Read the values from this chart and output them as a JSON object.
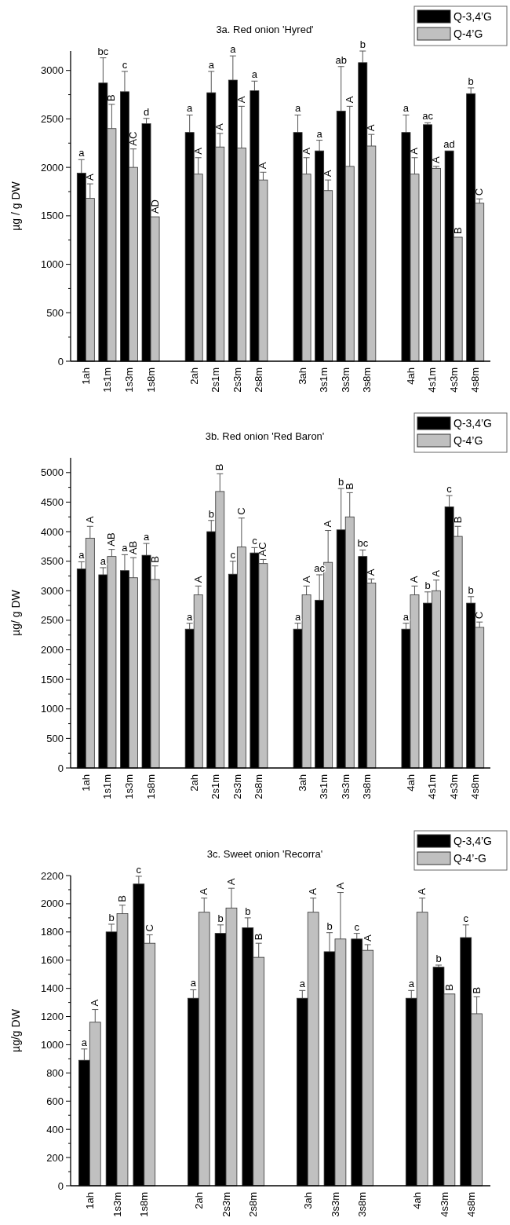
{
  "chart_data": [
    {
      "type": "bar",
      "title": "3a. Red onion 'Hyred'",
      "ylabel": "µg / g DW",
      "legend": "top right",
      "ylim": [
        0,
        3200
      ],
      "yticks": [
        0,
        {
          "value": 250,
          "label": null
        },
        500,
        {
          "value": 750,
          "label": null
        },
        1000,
        {
          "value": 1250,
          "label": null
        },
        1500,
        {
          "value": 1750,
          "label": null
        },
        2000,
        {
          "value": 2250,
          "label": null
        },
        2500,
        {
          "value": 2750,
          "label": null
        },
        3000
      ],
      "categories": [
        "1ah",
        "1s1m",
        "1s3m",
        "1s8m",
        null,
        "2ah",
        "2s1m",
        "2s3m",
        "2s8m",
        null,
        "3ah",
        "3s1m",
        "3s3m",
        "3s8m",
        null,
        "4ah",
        "4s1m",
        "4s3m",
        "4s8m"
      ],
      "series": [
        {
          "name": "Q-3,4’G",
          "color": "#000000",
          "values": [
            1940,
            2870,
            2780,
            2450,
            null,
            2360,
            2770,
            2900,
            2790,
            null,
            2360,
            2170,
            2580,
            3080,
            null,
            2360,
            2440,
            2170,
            2760
          ],
          "errors": [
            140,
            260,
            210,
            55,
            null,
            180,
            220,
            250,
            100,
            null,
            180,
            110,
            460,
            120,
            null,
            180,
            20,
            null,
            60
          ]
        },
        {
          "name": "Q-4’G",
          "color": "#c0c0c0",
          "values": [
            1680,
            2400,
            2000,
            1490,
            null,
            1930,
            2210,
            2200,
            1870,
            null,
            1930,
            1760,
            2010,
            2220,
            null,
            1930,
            1990,
            1280,
            1630
          ],
          "errors": [
            150,
            250,
            190,
            null,
            null,
            170,
            140,
            430,
            80,
            null,
            170,
            110,
            620,
            120,
            null,
            170,
            20,
            null,
            45
          ]
        }
      ],
      "annotations": [
        {
          "text": "a",
          "x": "1ah",
          "y": 2080
        },
        {
          "text": "bc",
          "x": "1s1m",
          "y": 3130
        },
        {
          "text": "c",
          "x": "1s3m",
          "y": 2990
        },
        {
          "text": "d",
          "x": "1s8m",
          "y": 2505
        },
        {
          "text": "a",
          "x": "2ah",
          "y": 2540
        },
        {
          "text": "a",
          "x": "2s1m",
          "y": 2990
        },
        {
          "text": "a",
          "x": "2s3m",
          "y": 3150
        },
        {
          "text": "a",
          "x": "2s8m",
          "y": 2890
        },
        {
          "text": "a",
          "x": "3ah",
          "y": 2540
        },
        {
          "text": "a",
          "x": "3s1m",
          "y": 2280
        },
        {
          "text": "ab",
          "x": "3s3m",
          "y": 3040
        },
        {
          "text": "b",
          "x": "3s8m",
          "y": 3200
        },
        {
          "text": "a",
          "x": "4ah",
          "y": 2540
        },
        {
          "text": "ac",
          "x": "4s1m",
          "y": 2460
        },
        {
          "text": "ad",
          "x": "4s3m",
          "y": 2170
        },
        {
          "text": "b",
          "x": "4s8m",
          "y": 2820
        },
        {
          "text": "A",
          "x": "1ah",
          "y": 1830
        },
        {
          "text": "B",
          "x": "1s1m",
          "y": 2650
        },
        {
          "text": "AC",
          "x": "1s3m",
          "y": 2190
        },
        {
          "text": "AD",
          "x": "1s8m",
          "y": 1490
        },
        {
          "text": "A",
          "x": "2ah",
          "y": 2100
        },
        {
          "text": "A",
          "x": "2s1m",
          "y": 2350
        },
        {
          "text": "A",
          "x": "2s3m",
          "y": 2630
        },
        {
          "text": "A",
          "x": "2s8m",
          "y": 1950
        },
        {
          "text": "A",
          "x": "3ah",
          "y": 2100
        },
        {
          "text": "A",
          "x": "3s1m",
          "y": 1870
        },
        {
          "text": "A",
          "x": "3s3m",
          "y": 2630
        },
        {
          "text": "A",
          "x": "3s8m",
          "y": 2340
        },
        {
          "text": "A",
          "x": "4ah",
          "y": 2100
        },
        {
          "text": "A",
          "x": "4s1m",
          "y": 2010
        },
        {
          "text": "B",
          "x": "4s3m",
          "y": 1280
        },
        {
          "text": "C",
          "x": "4s8m",
          "y": 1675
        }
      ]
    },
    {
      "type": "bar",
      "title": "3b. Red onion 'Red Baron'",
      "ylabel": "µg/ g DW",
      "legend": "top right",
      "ylim": [
        0,
        5250
      ],
      "yticks": [
        0,
        {
          "value": 250,
          "label": null
        },
        500,
        {
          "value": 750,
          "label": null
        },
        1000,
        {
          "value": 1250,
          "label": null
        },
        1500,
        {
          "value": 1750,
          "label": null
        },
        2000,
        {
          "value": 2250,
          "label": null
        },
        2500,
        {
          "value": 2750,
          "label": null
        },
        3000,
        {
          "value": 3250,
          "label": null
        },
        3500,
        {
          "value": 3750,
          "label": null
        },
        4000,
        {
          "value": 4250,
          "label": null
        },
        4500,
        {
          "value": 4750,
          "label": null
        },
        5000
      ],
      "categories": [
        "1ah",
        "1s1m",
        "1s3m",
        "1s8m",
        null,
        "2ah",
        "2s1m",
        "2s3m",
        "2s8m",
        null,
        "3ah",
        "3s1m",
        "3s3m",
        "3s8m",
        null,
        "4ah",
        "4s1m",
        "4s3m",
        "4s8m"
      ],
      "series": [
        {
          "name": "Q-3,4’G",
          "color": "#000000",
          "values": [
            3370,
            3270,
            3340,
            3600,
            null,
            2350,
            4000,
            3280,
            3640,
            null,
            2350,
            2840,
            4030,
            3580,
            null,
            2350,
            2790,
            4420,
            2790
          ],
          "errors": [
            120,
            120,
            270,
            200,
            null,
            100,
            190,
            220,
            90,
            null,
            100,
            430,
            700,
            110,
            null,
            100,
            190,
            190,
            110
          ]
        },
        {
          "name": "Q-4’G",
          "color": "#c0c0c0",
          "values": [
            3890,
            3580,
            3220,
            3190,
            null,
            2930,
            4680,
            3740,
            3460,
            null,
            2930,
            3480,
            4250,
            3130,
            null,
            2930,
            3000,
            3920,
            2380
          ],
          "errors": [
            200,
            120,
            340,
            230,
            null,
            150,
            300,
            490,
            70,
            null,
            150,
            540,
            410,
            70,
            null,
            150,
            180,
            170,
            90
          ]
        }
      ],
      "annotations": [
        {
          "text": "a",
          "x": "1ah",
          "y": 3490
        },
        {
          "text": "a",
          "x": "1s1m",
          "y": 3390
        },
        {
          "text": "a",
          "x": "1s3m",
          "y": 3610
        },
        {
          "text": "a",
          "x": "1s8m",
          "y": 3800
        },
        {
          "text": "a",
          "x": "2ah",
          "y": 2450
        },
        {
          "text": "b",
          "x": "2s1m",
          "y": 4190
        },
        {
          "text": "c",
          "x": "2s3m",
          "y": 3500
        },
        {
          "text": "c",
          "x": "2s8m",
          "y": 3730
        },
        {
          "text": "a",
          "x": "3ah",
          "y": 2450
        },
        {
          "text": "ac",
          "x": "3s1m",
          "y": 3270
        },
        {
          "text": "b",
          "x": "3s3m",
          "y": 4730
        },
        {
          "text": "bc",
          "x": "3s8m",
          "y": 3690
        },
        {
          "text": "a",
          "x": "4ah",
          "y": 2450
        },
        {
          "text": "b",
          "x": "4s1m",
          "y": 2980
        },
        {
          "text": "c",
          "x": "4s3m",
          "y": 4610
        },
        {
          "text": "b",
          "x": "4s8m",
          "y": 2900
        },
        {
          "text": "A",
          "x": "1ah",
          "y": 4090
        },
        {
          "text": "AB",
          "x": "1s1m",
          "y": 3700
        },
        {
          "text": "AB",
          "x": "1s3m",
          "y": 3560
        },
        {
          "text": "B",
          "x": "1s8m",
          "y": 3420
        },
        {
          "text": "A",
          "x": "2ah",
          "y": 3080
        },
        {
          "text": "B",
          "x": "2s1m",
          "y": 4980
        },
        {
          "text": "C",
          "x": "2s3m",
          "y": 4230
        },
        {
          "text": "AC",
          "x": "2s8m",
          "y": 3530
        },
        {
          "text": "A",
          "x": "3ah",
          "y": 3080
        },
        {
          "text": "A",
          "x": "3s1m",
          "y": 4020
        },
        {
          "text": "B",
          "x": "3s3m",
          "y": 4660
        },
        {
          "text": "A",
          "x": "3s8m",
          "y": 3200
        },
        {
          "text": "A",
          "x": "4ah",
          "y": 3080
        },
        {
          "text": "A",
          "x": "4s1m",
          "y": 3180
        },
        {
          "text": "B",
          "x": "4s3m",
          "y": 4090
        },
        {
          "text": "C",
          "x": "4s8m",
          "y": 2470
        }
      ]
    },
    {
      "type": "bar",
      "title": "3c. Sweet onion 'Recorra'",
      "ylabel": "µg/g DW",
      "legend": "top right",
      "ylim": [
        0,
        2200
      ],
      "yticks": [
        0,
        {
          "value": 100,
          "label": null
        },
        200,
        {
          "value": 300,
          "label": null
        },
        400,
        {
          "value": 500,
          "label": null
        },
        600,
        {
          "value": 700,
          "label": null
        },
        800,
        {
          "value": 900,
          "label": null
        },
        1000,
        {
          "value": 1100,
          "label": null
        },
        1200,
        {
          "value": 1300,
          "label": null
        },
        1400,
        {
          "value": 1500,
          "label": null
        },
        1600,
        {
          "value": 1700,
          "label": null
        },
        1800,
        {
          "value": 1900,
          "label": null
        },
        2000,
        {
          "value": 2100,
          "label": null
        },
        2200
      ],
      "categories": [
        "1ah",
        "1s3m",
        "1s8m",
        null,
        "2ah",
        "2s3m",
        "2s8m",
        null,
        "3ah",
        "3s3m",
        "3s8m",
        null,
        "4ah",
        "4s3m",
        "4s8m"
      ],
      "series": [
        {
          "name": "Q-3,4’G",
          "color": "#000000",
          "values": [
            890,
            1800,
            2140,
            null,
            1330,
            1790,
            1830,
            null,
            1330,
            1660,
            1750,
            null,
            1330,
            1550,
            1760
          ],
          "errors": [
            80,
            55,
            55,
            null,
            60,
            60,
            70,
            null,
            55,
            135,
            40,
            null,
            55,
            15,
            90
          ]
        },
        {
          "name": "Q-4’-G",
          "color": "#c0c0c0",
          "values": [
            1160,
            1930,
            1720,
            null,
            1940,
            1970,
            1620,
            null,
            1940,
            1750,
            1670,
            null,
            1940,
            1360,
            1220
          ],
          "errors": [
            90,
            60,
            60,
            null,
            100,
            140,
            100,
            null,
            100,
            330,
            40,
            null,
            100,
            null,
            120
          ]
        }
      ],
      "annotations": [
        {
          "text": "a",
          "x": "1ah",
          "y": 970
        },
        {
          "text": "b",
          "x": "1s3m",
          "y": 1855
        },
        {
          "text": "c",
          "x": "1s8m",
          "y": 2195
        },
        {
          "text": "a",
          "x": "2ah",
          "y": 1390
        },
        {
          "text": "b",
          "x": "2s3m",
          "y": 1850
        },
        {
          "text": "b",
          "x": "2s8m",
          "y": 1900
        },
        {
          "text": "a",
          "x": "3ah",
          "y": 1385
        },
        {
          "text": "b",
          "x": "3s3m",
          "y": 1795
        },
        {
          "text": "c",
          "x": "3s8m",
          "y": 1790
        },
        {
          "text": "a",
          "x": "4ah",
          "y": 1385
        },
        {
          "text": "b",
          "x": "4s3m",
          "y": 1565
        },
        {
          "text": "c",
          "x": "4s8m",
          "y": 1850
        },
        {
          "text": "A",
          "x": "1ah",
          "y": 1250
        },
        {
          "text": "B",
          "x": "1s3m",
          "y": 1990
        },
        {
          "text": "C",
          "x": "1s8m",
          "y": 1780
        },
        {
          "text": "A",
          "x": "2ah",
          "y": 2040
        },
        {
          "text": "A",
          "x": "2s3m",
          "y": 2110
        },
        {
          "text": "B",
          "x": "2s8m",
          "y": 1720
        },
        {
          "text": "A",
          "x": "3ah",
          "y": 2040
        },
        {
          "text": "A",
          "x": "3s3m",
          "y": 2080
        },
        {
          "text": "A",
          "x": "3s8m",
          "y": 1710
        },
        {
          "text": "A",
          "x": "4ah",
          "y": 2040
        },
        {
          "text": "B",
          "x": "4s3m",
          "y": 1360
        },
        {
          "text": "B",
          "x": "4s8m",
          "y": 1340
        }
      ]
    }
  ]
}
